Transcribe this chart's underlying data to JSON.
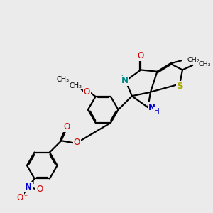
{
  "bg_color": "#ebebeb",
  "bond_lw": 1.6,
  "dbo": 0.048,
  "figsize": [
    3.0,
    3.0
  ],
  "dpi": 100,
  "xlim": [
    -1.0,
    9.0
  ],
  "ylim": [
    -1.0,
    9.0
  ],
  "colors": {
    "O": "#cc0000",
    "N": "#0000cc",
    "S": "#aaaa00",
    "NH_teal": "#008888",
    "C": "#000000"
  }
}
